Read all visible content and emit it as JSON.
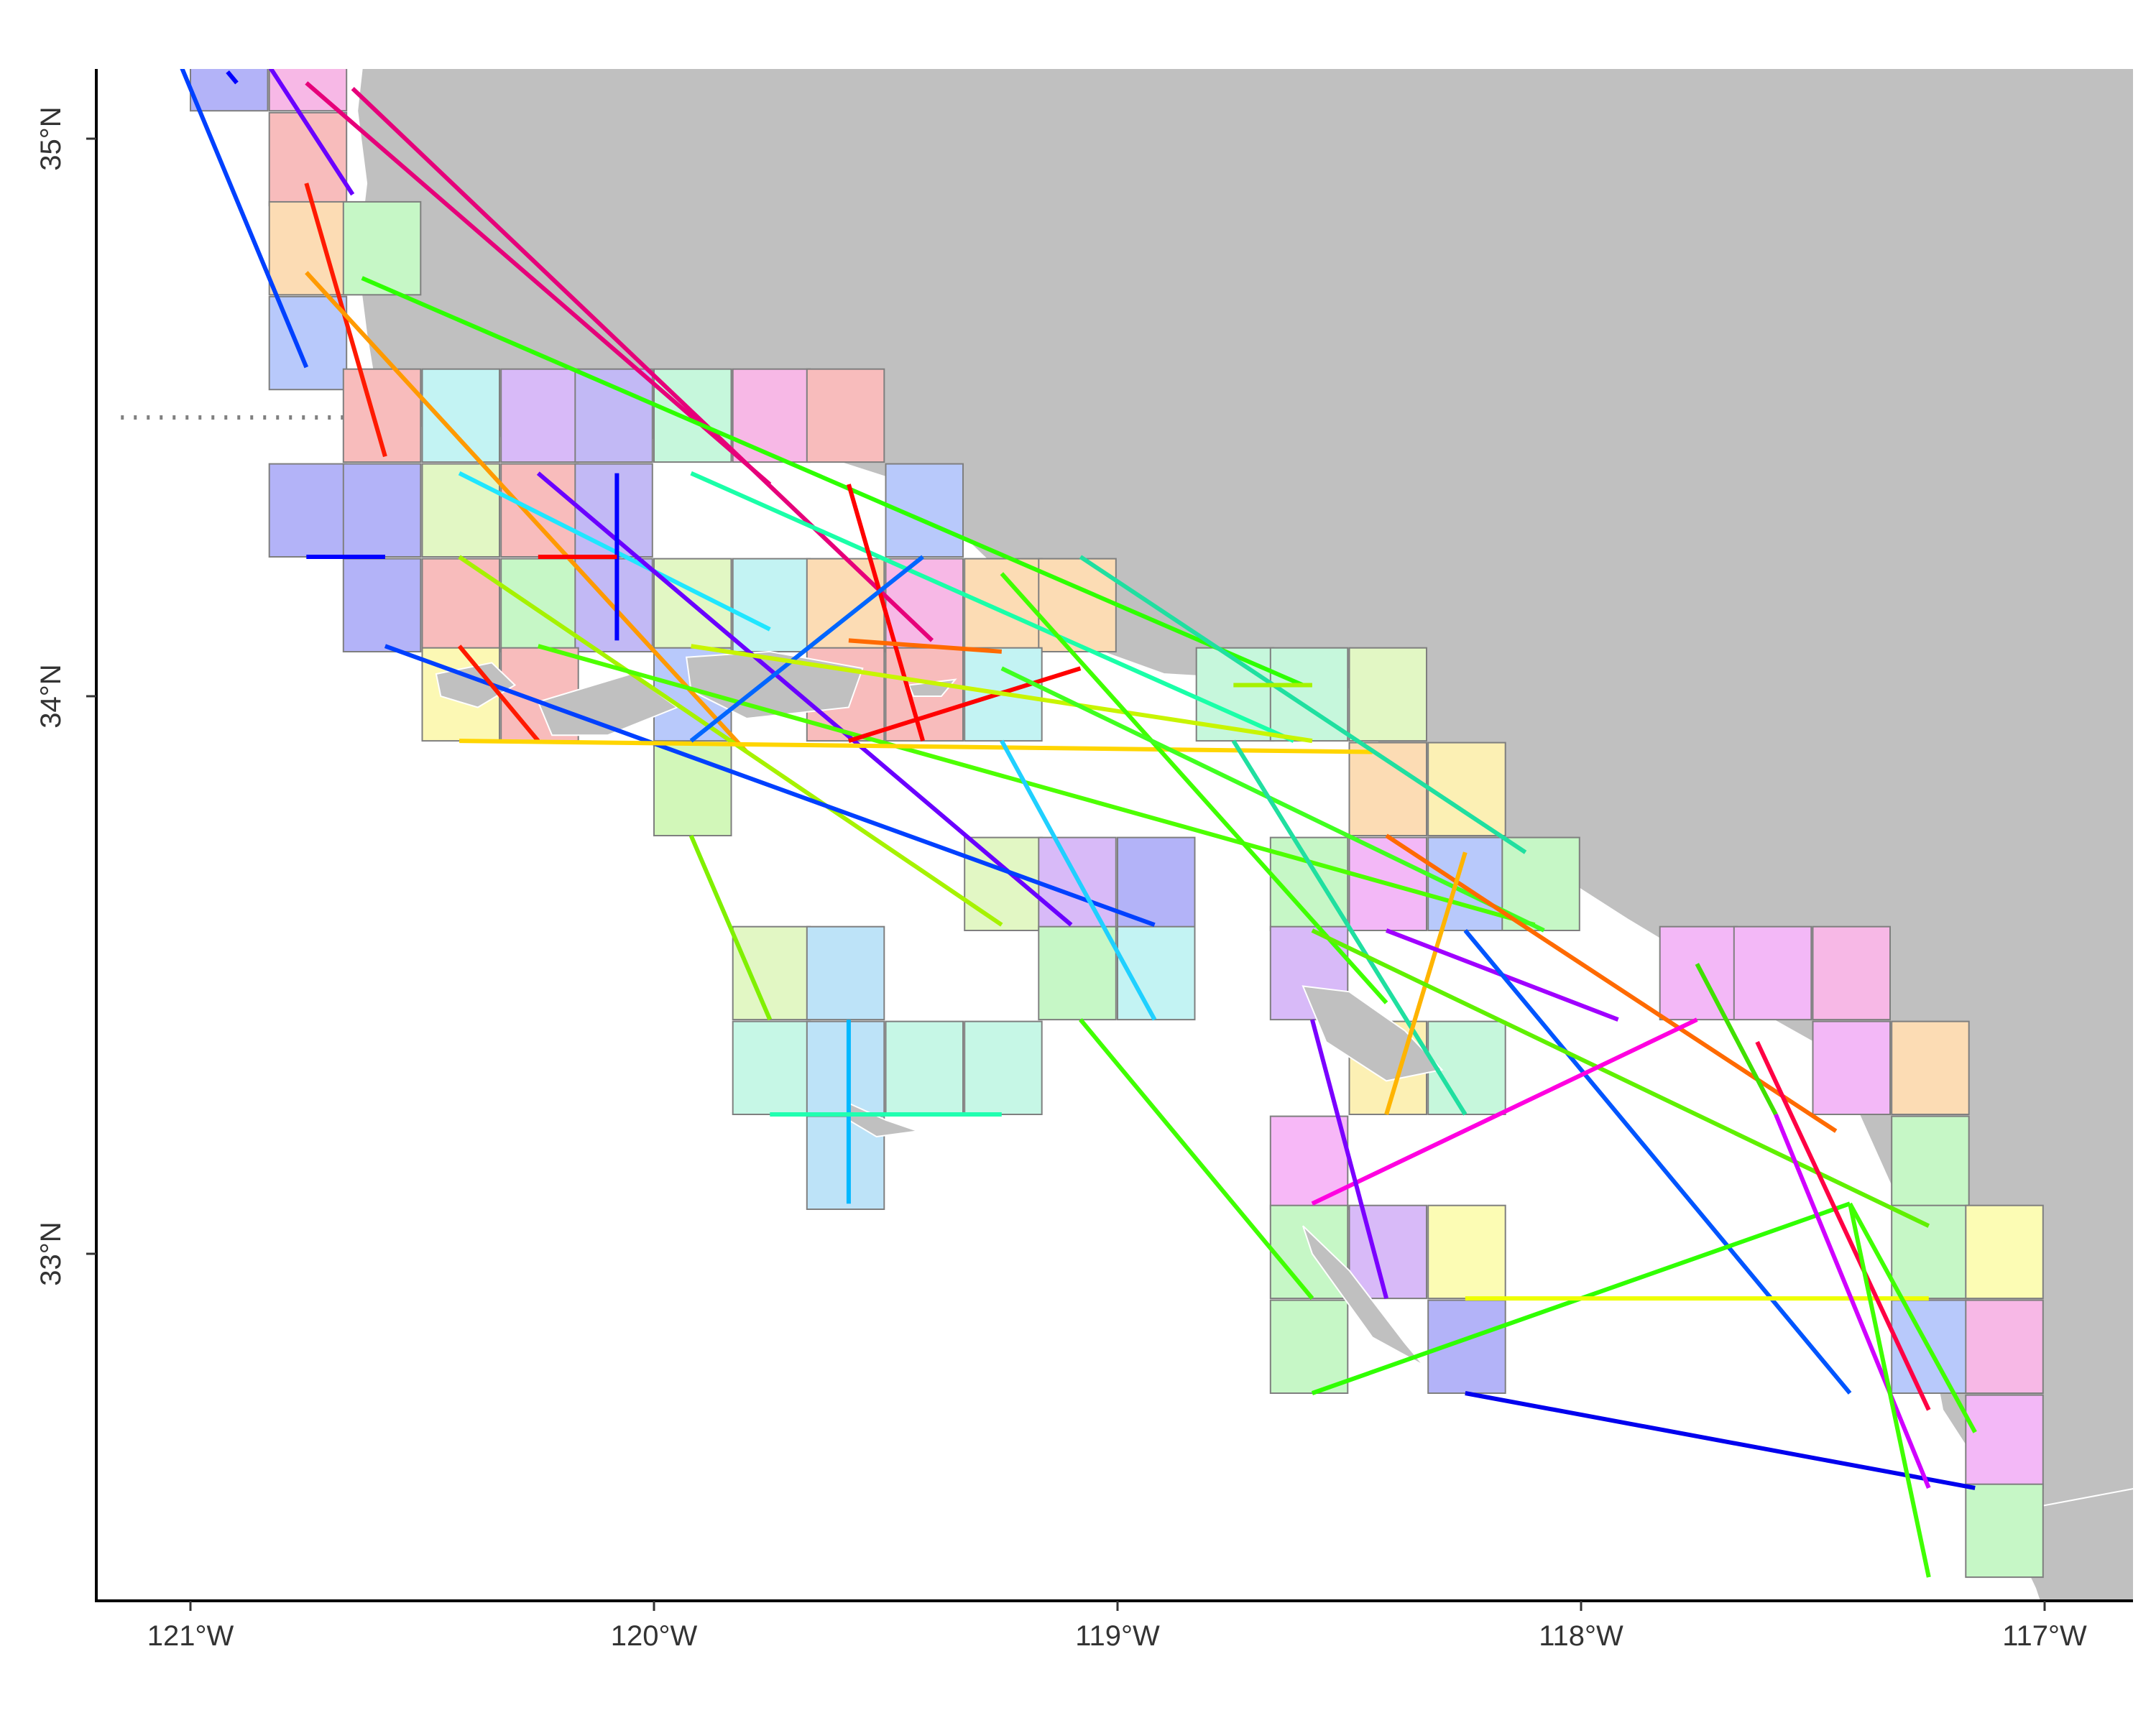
{
  "map": {
    "x_axis": {
      "tick_labels": [
        "121°W",
        "120°W",
        "119°W",
        "118°W",
        "117°W"
      ],
      "tick_values": [
        -121,
        -120,
        -119,
        -118,
        -117
      ],
      "range": [
        -121.2,
        -116.8
      ]
    },
    "y_axis": {
      "tick_labels": [
        "35°N",
        "34°N",
        "33°N"
      ],
      "tick_values": [
        35,
        34,
        33
      ],
      "range": [
        32.37,
        35.13
      ]
    },
    "colors": {
      "land": "#c0c0c0",
      "water": "#ffffff",
      "coastline": "#ffffff",
      "grid_cell_border": "#7f7f7f",
      "boundary_dotted": "#808080"
    },
    "grid_cell_size_deg": [
      0.1667,
      0.1667
    ],
    "grid_cells": [
      {
        "lon": -121.0,
        "lat": 35.05,
        "color": "#b3b3f8"
      },
      {
        "lon": -120.83,
        "lat": 35.05,
        "color": "#f7b8e6"
      },
      {
        "lon": -120.83,
        "lat": 34.88,
        "color": "#f8bcbc"
      },
      {
        "lon": -120.83,
        "lat": 34.72,
        "color": "#fcdcb4"
      },
      {
        "lon": -120.67,
        "lat": 34.72,
        "color": "#c6f7c6"
      },
      {
        "lon": -120.83,
        "lat": 34.55,
        "color": "#b8c9fb"
      },
      {
        "lon": -120.67,
        "lat": 34.42,
        "color": "#f8bcbc"
      },
      {
        "lon": -120.5,
        "lat": 34.42,
        "color": "#c3f3f3"
      },
      {
        "lon": -120.33,
        "lat": 34.42,
        "color": "#d8baf8"
      },
      {
        "lon": -120.17,
        "lat": 34.42,
        "color": "#c2b9f5"
      },
      {
        "lon": -120.0,
        "lat": 34.42,
        "color": "#c6f7dc"
      },
      {
        "lon": -119.83,
        "lat": 34.42,
        "color": "#f7b8e6"
      },
      {
        "lon": -119.67,
        "lat": 34.42,
        "color": "#f8bcbc"
      },
      {
        "lon": -120.83,
        "lat": 34.25,
        "color": "#b3b3f8"
      },
      {
        "lon": -120.67,
        "lat": 34.25,
        "color": "#b3b3f8"
      },
      {
        "lon": -120.5,
        "lat": 34.25,
        "color": "#e2f7c4"
      },
      {
        "lon": -120.33,
        "lat": 34.25,
        "color": "#f8bcbc"
      },
      {
        "lon": -120.17,
        "lat": 34.25,
        "color": "#c2b9f5"
      },
      {
        "lon": -119.5,
        "lat": 34.25,
        "color": "#b8c9fb"
      },
      {
        "lon": -120.67,
        "lat": 34.08,
        "color": "#b3b3f8"
      },
      {
        "lon": -120.5,
        "lat": 34.08,
        "color": "#f8bcbc"
      },
      {
        "lon": -120.33,
        "lat": 34.08,
        "color": "#c6f7c6"
      },
      {
        "lon": -120.17,
        "lat": 34.08,
        "color": "#c2b9f5"
      },
      {
        "lon": -120.0,
        "lat": 34.08,
        "color": "#e2f7c4"
      },
      {
        "lon": -119.83,
        "lat": 34.08,
        "color": "#c3f3f3"
      },
      {
        "lon": -119.67,
        "lat": 34.08,
        "color": "#fcdcb4"
      },
      {
        "lon": -119.5,
        "lat": 34.08,
        "color": "#f7b8e6"
      },
      {
        "lon": -119.33,
        "lat": 34.08,
        "color": "#fcdcb4"
      },
      {
        "lon": -119.17,
        "lat": 34.08,
        "color": "#fcdcb4"
      },
      {
        "lon": -120.5,
        "lat": 33.92,
        "color": "#fcf8b4"
      },
      {
        "lon": -120.33,
        "lat": 33.92,
        "color": "#f8bcbc"
      },
      {
        "lon": -120.0,
        "lat": 33.92,
        "color": "#b8c9fb"
      },
      {
        "lon": -119.67,
        "lat": 33.92,
        "color": "#f8bcbc"
      },
      {
        "lon": -119.5,
        "lat": 33.92,
        "color": "#f8bcbc"
      },
      {
        "lon": -119.33,
        "lat": 33.92,
        "color": "#c3f3f3"
      },
      {
        "lon": -118.83,
        "lat": 33.92,
        "color": "#c6f7dc"
      },
      {
        "lon": -118.67,
        "lat": 33.92,
        "color": "#c6f7dc"
      },
      {
        "lon": -118.5,
        "lat": 33.92,
        "color": "#e2f7c4"
      },
      {
        "lon": -120.0,
        "lat": 33.75,
        "color": "#d2f7b9"
      },
      {
        "lon": -118.5,
        "lat": 33.75,
        "color": "#fcdcb4"
      },
      {
        "lon": -118.33,
        "lat": 33.75,
        "color": "#fcf0b4"
      },
      {
        "lon": -119.33,
        "lat": 33.58,
        "color": "#e2f7c4"
      },
      {
        "lon": -119.17,
        "lat": 33.58,
        "color": "#d8baf8"
      },
      {
        "lon": -119.0,
        "lat": 33.58,
        "color": "#b3b3f8"
      },
      {
        "lon": -118.67,
        "lat": 33.58,
        "color": "#c6f7c6"
      },
      {
        "lon": -118.5,
        "lat": 33.58,
        "color": "#f3b8f7"
      },
      {
        "lon": -118.33,
        "lat": 33.58,
        "color": "#b8c9fb"
      },
      {
        "lon": -118.17,
        "lat": 33.58,
        "color": "#c6f7c6"
      },
      {
        "lon": -119.83,
        "lat": 33.42,
        "color": "#e2f7c4"
      },
      {
        "lon": -119.67,
        "lat": 33.42,
        "color": "#bde3f8"
      },
      {
        "lon": -119.17,
        "lat": 33.42,
        "color": "#c6f7c6"
      },
      {
        "lon": -119.0,
        "lat": 33.42,
        "color": "#c3f3f3"
      },
      {
        "lon": -118.67,
        "lat": 33.42,
        "color": "#d8baf8"
      },
      {
        "lon": -117.83,
        "lat": 33.42,
        "color": "#f3b8f7"
      },
      {
        "lon": -117.67,
        "lat": 33.42,
        "color": "#f3b8f7"
      },
      {
        "lon": -117.5,
        "lat": 33.42,
        "color": "#f7b8e6"
      },
      {
        "lon": -119.83,
        "lat": 33.25,
        "color": "#c6f7e6"
      },
      {
        "lon": -119.67,
        "lat": 33.25,
        "color": "#bde3f8"
      },
      {
        "lon": -119.5,
        "lat": 33.25,
        "color": "#c6f7e6"
      },
      {
        "lon": -119.33,
        "lat": 33.25,
        "color": "#c6f7e6"
      },
      {
        "lon": -118.5,
        "lat": 33.25,
        "color": "#fcf0b4"
      },
      {
        "lon": -118.33,
        "lat": 33.25,
        "color": "#c6f7dc"
      },
      {
        "lon": -117.5,
        "lat": 33.25,
        "color": "#f3b8f7"
      },
      {
        "lon": -117.33,
        "lat": 33.25,
        "color": "#fcdcb4"
      },
      {
        "lon": -119.67,
        "lat": 33.08,
        "color": "#bde3f8"
      },
      {
        "lon": -118.67,
        "lat": 33.08,
        "color": "#f7b8f7"
      },
      {
        "lon": -117.33,
        "lat": 33.08,
        "color": "#c6f7c6"
      },
      {
        "lon": -118.67,
        "lat": 32.92,
        "color": "#c6f7c6"
      },
      {
        "lon": -118.5,
        "lat": 32.92,
        "color": "#d8baf8"
      },
      {
        "lon": -118.33,
        "lat": 32.92,
        "color": "#fcfcb4"
      },
      {
        "lon": -117.33,
        "lat": 32.92,
        "color": "#c6f7c6"
      },
      {
        "lon": -117.17,
        "lat": 32.92,
        "color": "#fcfcb4"
      },
      {
        "lon": -118.67,
        "lat": 32.75,
        "color": "#c6f7c6"
      },
      {
        "lon": -118.33,
        "lat": 32.75,
        "color": "#b3b3f8"
      },
      {
        "lon": -117.33,
        "lat": 32.75,
        "color": "#b8c9fb"
      },
      {
        "lon": -117.17,
        "lat": 32.75,
        "color": "#f7b8e6"
      },
      {
        "lon": -117.17,
        "lat": 32.58,
        "color": "#f3b8f7"
      },
      {
        "lon": -117.17,
        "lat": 32.42,
        "color": "#c6f7c6"
      }
    ],
    "transects": [
      {
        "color": "#0000ff",
        "from": [
          -120.92,
          35.12
        ],
        "to": [
          -120.9,
          35.1
        ]
      },
      {
        "color": "#0040ff",
        "from": [
          -121.03,
          35.15
        ],
        "to": [
          -120.75,
          34.59
        ]
      },
      {
        "color": "#6a00ff",
        "from": [
          -120.83,
          35.13
        ],
        "to": [
          -120.65,
          34.9
        ]
      },
      {
        "color": "#ff1a00",
        "from": [
          -120.75,
          34.92
        ],
        "to": [
          -120.58,
          34.43
        ]
      },
      {
        "color": "#ff9a00",
        "from": [
          -120.75,
          34.76
        ],
        "to": [
          -119.8,
          33.9
        ]
      },
      {
        "color": "#e6007a",
        "from": [
          -120.75,
          35.1
        ],
        "to": [
          -119.75,
          34.38
        ]
      },
      {
        "color": "#e6007a",
        "from": [
          -120.65,
          35.09
        ],
        "to": [
          -119.4,
          34.1
        ]
      },
      {
        "color": "#2eff00",
        "from": [
          -120.63,
          34.75
        ],
        "to": [
          -118.6,
          34.02
        ]
      },
      {
        "color": "#20e6ff",
        "from": [
          -120.42,
          34.4
        ],
        "to": [
          -119.75,
          34.12
        ]
      },
      {
        "color": "#6a00ff",
        "from": [
          -120.25,
          34.4
        ],
        "to": [
          -119.1,
          33.59
        ]
      },
      {
        "color": "#0000ff",
        "from": [
          -120.08,
          34.4
        ],
        "to": [
          -120.08,
          34.1
        ]
      },
      {
        "color": "#0000ff",
        "from": [
          -120.75,
          34.25
        ],
        "to": [
          -120.58,
          34.25
        ]
      },
      {
        "color": "#ff0000",
        "from": [
          -120.25,
          34.25
        ],
        "to": [
          -120.08,
          34.25
        ]
      },
      {
        "color": "#a6f200",
        "from": [
          -120.42,
          34.25
        ],
        "to": [
          -119.25,
          33.59
        ]
      },
      {
        "color": "#0040ff",
        "from": [
          -120.58,
          34.09
        ],
        "to": [
          -118.92,
          33.59
        ]
      },
      {
        "color": "#ff1a00",
        "from": [
          -120.42,
          34.09
        ],
        "to": [
          -120.25,
          33.92
        ]
      },
      {
        "color": "#4dff00",
        "from": [
          -120.25,
          34.09
        ],
        "to": [
          -118.1,
          33.59
        ]
      },
      {
        "color": "#ffd500",
        "from": [
          -120.42,
          33.92
        ],
        "to": [
          -118.45,
          33.9
        ]
      },
      {
        "color": "#1affa8",
        "from": [
          -119.92,
          34.4
        ],
        "to": [
          -118.62,
          33.92
        ]
      },
      {
        "color": "#ff0000",
        "from": [
          -119.58,
          34.38
        ],
        "to": [
          -119.42,
          33.92
        ]
      },
      {
        "color": "#0066ff",
        "from": [
          -119.92,
          33.92
        ],
        "to": [
          -119.42,
          34.25
        ]
      },
      {
        "color": "#ff0000",
        "from": [
          -119.58,
          33.92
        ],
        "to": [
          -119.08,
          34.05
        ]
      },
      {
        "color": "#ff6a00",
        "from": [
          -119.58,
          34.1
        ],
        "to": [
          -119.25,
          34.08
        ]
      },
      {
        "color": "#c8f500",
        "from": [
          -119.92,
          34.09
        ],
        "to": [
          -118.58,
          33.92
        ]
      },
      {
        "color": "#40ff00",
        "from": [
          -119.25,
          34.22
        ],
        "to": [
          -118.42,
          33.45
        ]
      },
      {
        "color": "#20dfa0",
        "from": [
          -119.08,
          34.25
        ],
        "to": [
          -118.12,
          33.72
        ]
      },
      {
        "color": "#40ff20",
        "from": [
          -119.25,
          34.05
        ],
        "to": [
          -118.08,
          33.58
        ]
      },
      {
        "color": "#20d0ff",
        "from": [
          -119.25,
          33.92
        ],
        "to": [
          -118.92,
          33.42
        ]
      },
      {
        "color": "#a6f200",
        "from": [
          -118.75,
          34.02
        ],
        "to": [
          -118.58,
          34.02
        ]
      },
      {
        "color": "#80f000",
        "from": [
          -119.92,
          33.75
        ],
        "to": [
          -119.75,
          33.42
        ]
      },
      {
        "color": "#00b8ff",
        "from": [
          -119.58,
          33.42
        ],
        "to": [
          -119.58,
          33.09
        ]
      },
      {
        "color": "#20ffb0",
        "from": [
          -119.75,
          33.25
        ],
        "to": [
          -119.25,
          33.25
        ]
      },
      {
        "color": "#40ff00",
        "from": [
          -119.08,
          33.42
        ],
        "to": [
          -118.58,
          32.92
        ]
      },
      {
        "color": "#20dfa0",
        "from": [
          -118.75,
          33.92
        ],
        "to": [
          -118.25,
          33.25
        ]
      },
      {
        "color": "#ff6a00",
        "from": [
          -118.42,
          33.75
        ],
        "to": [
          -117.45,
          33.22
        ]
      },
      {
        "color": "#ffb400",
        "from": [
          -118.42,
          33.25
        ],
        "to": [
          -118.25,
          33.72
        ]
      },
      {
        "color": "#a000ff",
        "from": [
          -118.42,
          33.58
        ],
        "to": [
          -117.92,
          33.42
        ]
      },
      {
        "color": "#0055ff",
        "from": [
          -118.25,
          33.58
        ],
        "to": [
          -117.42,
          32.75
        ]
      },
      {
        "color": "#60f000",
        "from": [
          -118.58,
          33.58
        ],
        "to": [
          -117.25,
          33.05
        ]
      },
      {
        "color": "#ff00e0",
        "from": [
          -118.58,
          33.09
        ],
        "to": [
          -117.75,
          33.42
        ]
      },
      {
        "color": "#7a00ff",
        "from": [
          -118.58,
          33.42
        ],
        "to": [
          -118.42,
          32.92
        ]
      },
      {
        "color": "#30ff00",
        "from": [
          -118.58,
          32.75
        ],
        "to": [
          -117.42,
          33.09
        ]
      },
      {
        "color": "#eeff00",
        "from": [
          -118.25,
          32.92
        ],
        "to": [
          -117.25,
          32.92
        ]
      },
      {
        "color": "#0000ee",
        "from": [
          -118.25,
          32.75
        ],
        "to": [
          -117.15,
          32.58
        ]
      },
      {
        "color": "#40e000",
        "from": [
          -117.75,
          33.52
        ],
        "to": [
          -117.58,
          33.25
        ]
      },
      {
        "color": "#ff0044",
        "from": [
          -117.62,
          33.38
        ],
        "to": [
          -117.25,
          32.72
        ]
      },
      {
        "color": "#d000ff",
        "from": [
          -117.58,
          33.25
        ],
        "to": [
          -117.25,
          32.58
        ]
      },
      {
        "color": "#40ff00",
        "from": [
          -117.42,
          33.09
        ],
        "to": [
          -117.25,
          32.42
        ]
      },
      {
        "color": "#40ff00",
        "from": [
          -117.42,
          33.09
        ],
        "to": [
          -117.15,
          32.68
        ]
      }
    ]
  }
}
